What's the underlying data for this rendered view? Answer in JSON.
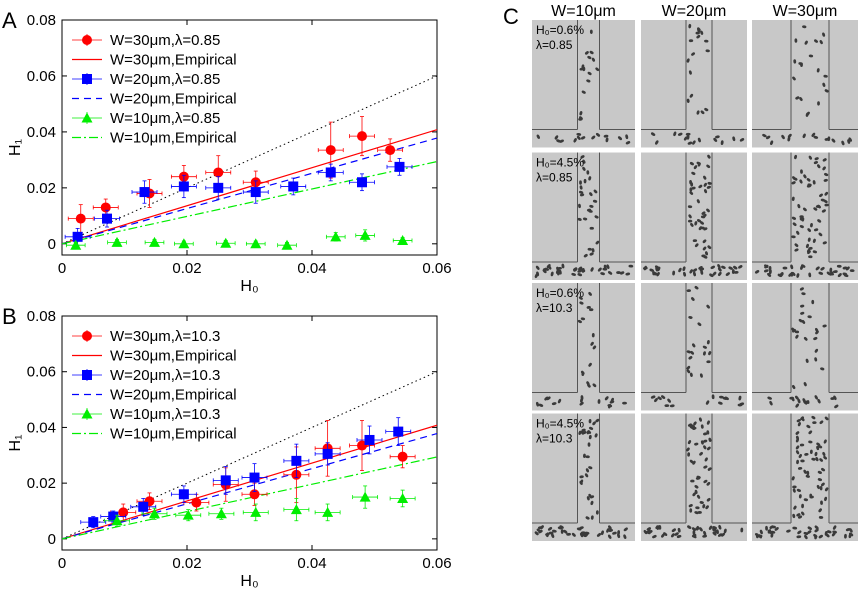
{
  "panel_c_letter": "C",
  "panel_c": {
    "columns": [
      "W=10μm",
      "W=20μm",
      "W=30μm"
    ],
    "rows": [
      {
        "line1": "H₀=0.6%",
        "line2": "λ=0.85",
        "density": 0.15
      },
      {
        "line1": "H₀=4.5%",
        "line2": "λ=0.85",
        "density": 0.8
      },
      {
        "line1": "H₀=0.6%",
        "line2": "λ=10.3",
        "density": 0.2
      },
      {
        "line1": "H₀=4.5%",
        "line2": "λ=10.3",
        "density": 0.9
      }
    ]
  },
  "colors": {
    "red": "#ff0000",
    "blue": "#0000ff",
    "green": "#00ee00",
    "dotted": "#000000",
    "photo_bg": "#c8c8c8",
    "channel": "#d2d2d2",
    "cell": "#3a3a3a"
  },
  "chart_data": [
    {
      "panel": "A",
      "type": "scatter",
      "xlabel": "H₀",
      "ylabel": "H₁",
      "xlim": [
        0,
        0.06
      ],
      "ylim": [
        -0.004,
        0.08
      ],
      "xticks": [
        "0",
        "0.02",
        "0.04",
        "0.06"
      ],
      "yticks": [
        "0",
        "0.02",
        "0.04",
        "0.06",
        "0.08"
      ],
      "legend_position": "top-left",
      "reference_line": {
        "style": "dotted",
        "slope": 1
      },
      "series": [
        {
          "name": "W=30μm,λ=0.85",
          "kind": "points",
          "color": "red",
          "marker": "circle",
          "x": [
            0.003,
            0.007,
            0.014,
            0.0195,
            0.025,
            0.031,
            0.043,
            0.048,
            0.0525
          ],
          "y": [
            0.009,
            0.013,
            0.018,
            0.024,
            0.0255,
            0.022,
            0.0335,
            0.0385,
            0.0335
          ],
          "xerr": [
            0.002,
            0.002,
            0.002,
            0.002,
            0.002,
            0.002,
            0.002,
            0.002,
            0.002
          ],
          "yerr": [
            0.005,
            0.003,
            0.005,
            0.004,
            0.006,
            0.004,
            0.01,
            0.007,
            0.004
          ]
        },
        {
          "name": "W=30μm,Empirical",
          "kind": "line",
          "color": "red",
          "dash": "solid",
          "slope": 0.68
        },
        {
          "name": "W=20μm,λ=0.85",
          "kind": "points",
          "color": "blue",
          "marker": "square",
          "x": [
            0.0025,
            0.0072,
            0.0132,
            0.0195,
            0.025,
            0.031,
            0.037,
            0.043,
            0.048,
            0.054
          ],
          "y": [
            0.0025,
            0.009,
            0.0185,
            0.0205,
            0.02,
            0.0185,
            0.0205,
            0.0255,
            0.022,
            0.0275
          ],
          "xerr": [
            0.002,
            0.002,
            0.002,
            0.002,
            0.002,
            0.002,
            0.002,
            0.002,
            0.002,
            0.002
          ],
          "yerr": [
            0.003,
            0.003,
            0.004,
            0.004,
            0.004,
            0.004,
            0.003,
            0.003,
            0.003,
            0.003
          ]
        },
        {
          "name": "W=20μm,Empirical",
          "kind": "line",
          "color": "blue",
          "dash": "dashed",
          "slope": 0.63
        },
        {
          "name": "W=10μm,λ=0.85",
          "kind": "points",
          "color": "green",
          "marker": "triangle",
          "x": [
            0.0022,
            0.0088,
            0.0148,
            0.0195,
            0.0262,
            0.031,
            0.036,
            0.0438,
            0.0485,
            0.0545
          ],
          "y": [
            -0.0005,
            0.0005,
            0.0005,
            0.0,
            0.0002,
            0.0,
            -0.0005,
            0.0025,
            0.003,
            0.0012
          ],
          "xerr": [
            0.0015,
            0.0015,
            0.0015,
            0.0015,
            0.0015,
            0.0015,
            0.0015,
            0.0015,
            0.0015,
            0.0015
          ],
          "yerr": [
            0.001,
            0.001,
            0.001,
            0.001,
            0.001,
            0.001,
            0.001,
            0.0015,
            0.002,
            0.001
          ]
        },
        {
          "name": "W=10μm,Empirical",
          "kind": "line",
          "color": "green",
          "dash": "dashdot",
          "slope": 0.49
        }
      ]
    },
    {
      "panel": "B",
      "type": "scatter",
      "xlabel": "H₀",
      "ylabel": "H₁",
      "xlim": [
        0,
        0.06
      ],
      "ylim": [
        -0.004,
        0.08
      ],
      "xticks": [
        "0",
        "0.02",
        "0.04",
        "0.06"
      ],
      "yticks": [
        "0",
        "0.02",
        "0.04",
        "0.06",
        "0.08"
      ],
      "legend_position": "top-left",
      "reference_line": {
        "style": "dotted",
        "slope": 1
      },
      "series": [
        {
          "name": "W=30μm,λ=10.3",
          "kind": "points",
          "color": "red",
          "marker": "circle",
          "x": [
            0.0098,
            0.014,
            0.0215,
            0.0262,
            0.0308,
            0.0375,
            0.0425,
            0.048,
            0.0545
          ],
          "y": [
            0.0095,
            0.0135,
            0.013,
            0.0195,
            0.016,
            0.023,
            0.0325,
            0.0335,
            0.0295
          ],
          "xerr": [
            0.002,
            0.002,
            0.002,
            0.002,
            0.002,
            0.002,
            0.002,
            0.002,
            0.002
          ],
          "yerr": [
            0.003,
            0.003,
            0.003,
            0.006,
            0.004,
            0.01,
            0.01,
            0.009,
            0.004
          ]
        },
        {
          "name": "W=30μm,Empirical",
          "kind": "line",
          "color": "red",
          "dash": "solid",
          "slope": 0.68
        },
        {
          "name": "W=20μm,λ=10.3",
          "kind": "points",
          "color": "blue",
          "marker": "square",
          "x": [
            0.005,
            0.0082,
            0.013,
            0.0195,
            0.0262,
            0.0308,
            0.0375,
            0.0425,
            0.0492,
            0.0538
          ],
          "y": [
            0.006,
            0.008,
            0.0115,
            0.016,
            0.021,
            0.022,
            0.028,
            0.0305,
            0.0355,
            0.0385
          ],
          "xerr": [
            0.002,
            0.002,
            0.002,
            0.002,
            0.002,
            0.002,
            0.002,
            0.002,
            0.002,
            0.002
          ],
          "yerr": [
            0.002,
            0.002,
            0.003,
            0.003,
            0.005,
            0.005,
            0.006,
            0.004,
            0.005,
            0.005
          ]
        },
        {
          "name": "W=20μm,Empirical",
          "kind": "line",
          "color": "blue",
          "dash": "dashed",
          "slope": 0.63
        },
        {
          "name": "W=10μm,λ=10.3",
          "kind": "points",
          "color": "green",
          "marker": "triangle",
          "x": [
            0.0088,
            0.0148,
            0.0202,
            0.0255,
            0.031,
            0.0375,
            0.0425,
            0.0485,
            0.0545
          ],
          "y": [
            0.0065,
            0.009,
            0.0085,
            0.009,
            0.0095,
            0.0105,
            0.0095,
            0.015,
            0.0145
          ],
          "xerr": [
            0.002,
            0.002,
            0.002,
            0.002,
            0.002,
            0.002,
            0.002,
            0.002,
            0.002
          ],
          "yerr": [
            0.002,
            0.002,
            0.002,
            0.002,
            0.003,
            0.004,
            0.003,
            0.004,
            0.003
          ]
        },
        {
          "name": "W=10μm,Empirical",
          "kind": "line",
          "color": "green",
          "dash": "dashdot",
          "slope": 0.49
        }
      ]
    }
  ]
}
